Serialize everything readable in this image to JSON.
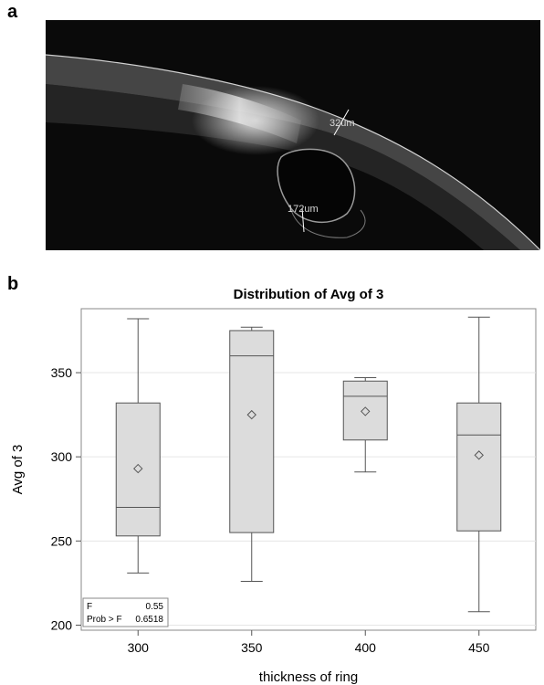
{
  "panels": {
    "a": "a",
    "b": "b"
  },
  "oct_image": {
    "measure_top": "32um",
    "measure_bottom": "172um"
  },
  "chart_data": {
    "type": "box",
    "title": "Distribution of Avg  of  3",
    "xlabel": "thickness  of  ring",
    "ylabel": "Avg  of  3",
    "categories": [
      "300",
      "350",
      "400",
      "450"
    ],
    "ylim": [
      197,
      388
    ],
    "yticks": [
      200,
      250,
      300,
      350
    ],
    "grid": "horizontal",
    "boxes": [
      {
        "category": "300",
        "min": 231,
        "q1": 253,
        "median": 270,
        "q3": 332,
        "max": 382,
        "mean": 293
      },
      {
        "category": "350",
        "min": 226,
        "q1": 255,
        "median": 360,
        "q3": 375,
        "max": 377,
        "mean": 325
      },
      {
        "category": "400",
        "min": 291,
        "q1": 310,
        "median": 336,
        "q3": 345,
        "max": 347,
        "mean": 327
      },
      {
        "category": "450",
        "min": 208,
        "q1": 256,
        "median": 313,
        "q3": 332,
        "max": 383,
        "mean": 301
      }
    ],
    "stats_box": {
      "placement": "bottom-left",
      "rows": [
        {
          "label": "F",
          "value": "0.55"
        },
        {
          "label": "Prob > F",
          "value": "0.6518"
        }
      ]
    },
    "colors": {
      "box_fill": "#dcdcdc",
      "stroke": "#555555",
      "grid": "#e6e6e6"
    }
  }
}
